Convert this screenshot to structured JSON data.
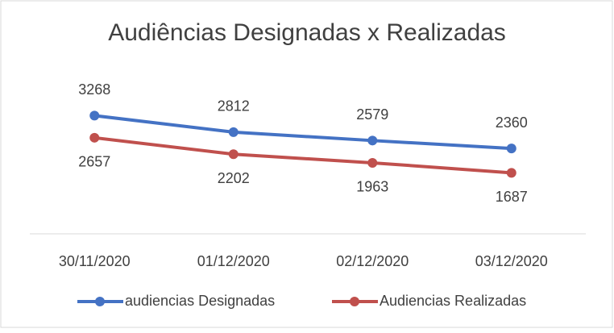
{
  "chart_data": {
    "type": "line",
    "title": "Audiências Designadas x Realizadas",
    "categories": [
      "30/11/2020",
      "01/12/2020",
      "02/12/2020",
      "03/12/2020"
    ],
    "series": [
      {
        "name": "audiencias Designadas",
        "color": "#4472c4",
        "values": [
          3268,
          2812,
          2579,
          2360
        ]
      },
      {
        "name": "Audiencias Realizadas",
        "color": "#c0504d",
        "values": [
          2657,
          2202,
          1963,
          1687
        ]
      }
    ],
    "ylim": [
      0,
      3500
    ],
    "legend": "bottom"
  }
}
